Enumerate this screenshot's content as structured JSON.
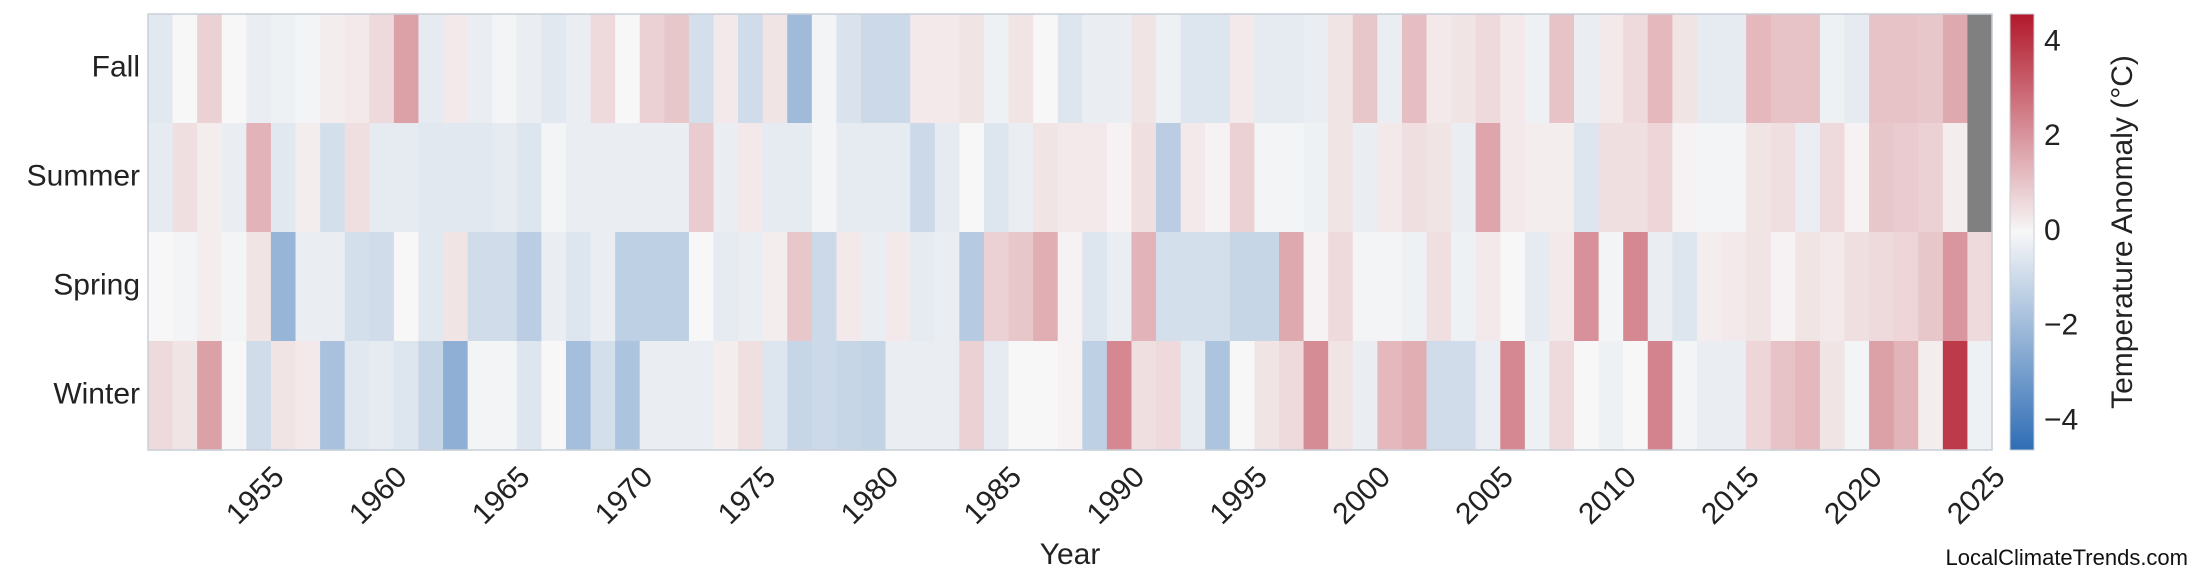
{
  "chart_data": {
    "type": "heatmap",
    "xlabel": "Year",
    "colorbar_label": "Temperature Anomaly (°C)",
    "colorbar_ticks": [
      "−4",
      "−2",
      "0",
      "2",
      "4"
    ],
    "colorbar_tick_values": [
      -4,
      -2,
      0,
      2,
      4
    ],
    "clim": [
      -4.6,
      4.6
    ],
    "colormap": [
      "#2f6db5",
      "#f7f7f7",
      "#b2182b"
    ],
    "missing_color": "#808080",
    "seasons": [
      "Fall",
      "Summer",
      "Spring",
      "Winter"
    ],
    "x_tick_labels": [
      "1955",
      "1960",
      "1965",
      "1970",
      "1975",
      "1980",
      "1985",
      "1990",
      "1995",
      "2000",
      "2005",
      "2010",
      "2015",
      "2020",
      "2025"
    ],
    "x_tick_values": [
      1955,
      1960,
      1965,
      1970,
      1975,
      1980,
      1985,
      1990,
      1995,
      2000,
      2005,
      2010,
      2015,
      2020,
      2025
    ],
    "xlim": [
      1950,
      2025
    ],
    "years": [
      1950,
      1951,
      1952,
      1953,
      1954,
      1955,
      1956,
      1957,
      1958,
      1959,
      1960,
      1961,
      1962,
      1963,
      1964,
      1965,
      1966,
      1967,
      1968,
      1969,
      1970,
      1971,
      1972,
      1973,
      1974,
      1975,
      1976,
      1977,
      1978,
      1979,
      1980,
      1981,
      1982,
      1983,
      1984,
      1985,
      1986,
      1987,
      1988,
      1989,
      1990,
      1991,
      1992,
      1993,
      1994,
      1995,
      1996,
      1997,
      1998,
      1999,
      2000,
      2001,
      2002,
      2003,
      2004,
      2005,
      2006,
      2007,
      2008,
      2009,
      2010,
      2011,
      2012,
      2013,
      2014,
      2015,
      2016,
      2017,
      2018,
      2019,
      2020,
      2021,
      2022,
      2023,
      2024
    ],
    "values": {
      "Fall": [
        -0.5,
        0.0,
        0.8,
        0.0,
        -0.3,
        -0.2,
        -0.1,
        0.2,
        0.3,
        0.6,
        1.8,
        -0.4,
        0.3,
        -0.3,
        -0.1,
        -0.3,
        -0.5,
        -0.3,
        0.6,
        0.0,
        0.8,
        1.0,
        -0.8,
        0.3,
        -0.9,
        0.4,
        -2.0,
        -0.1,
        -0.7,
        -1.0,
        -1.0,
        0.3,
        0.3,
        0.4,
        -0.2,
        0.4,
        0.0,
        -0.6,
        -0.3,
        -0.3,
        0.4,
        -0.2,
        -0.6,
        -0.6,
        0.3,
        -0.4,
        -0.4,
        -0.3,
        0.4,
        1.0,
        -0.3,
        1.2,
        0.3,
        0.4,
        0.6,
        0.3,
        -0.2,
        1.1,
        -0.3,
        0.3,
        0.6,
        1.3,
        0.4,
        -0.4,
        -0.4,
        1.3,
        1.1,
        1.1,
        -0.2,
        -0.4,
        1.1,
        1.1,
        1.0,
        1.6,
        null
      ],
      "Summer": [
        -0.4,
        0.5,
        0.2,
        -0.3,
        1.4,
        -0.5,
        0.2,
        -0.8,
        0.5,
        -0.4,
        -0.4,
        -0.5,
        -0.5,
        -0.5,
        -0.4,
        -0.6,
        -0.1,
        -0.3,
        -0.3,
        -0.3,
        -0.3,
        -0.3,
        0.9,
        -0.3,
        0.3,
        -0.4,
        -0.4,
        -0.1,
        -0.4,
        -0.4,
        -0.4,
        -1.0,
        -0.4,
        0.0,
        -0.6,
        -0.3,
        0.4,
        0.3,
        0.3,
        0.1,
        0.5,
        -1.4,
        0.3,
        0.1,
        0.8,
        -0.1,
        -0.1,
        -0.2,
        0.4,
        -0.3,
        0.3,
        0.5,
        0.4,
        -0.3,
        1.7,
        0.3,
        0.2,
        0.2,
        -0.6,
        0.5,
        0.5,
        0.7,
        0.1,
        -0.1,
        -0.1,
        0.4,
        0.5,
        -0.3,
        0.6,
        0.1,
        1.0,
        0.9,
        0.8,
        0.2,
        null
      ],
      "Spring": [
        0.0,
        -0.1,
        0.2,
        -0.1,
        0.4,
        -2.2,
        -0.3,
        -0.3,
        -0.8,
        -0.9,
        0.0,
        -0.5,
        0.4,
        -0.9,
        -0.9,
        -1.4,
        -0.3,
        -0.6,
        -0.3,
        -1.3,
        -1.3,
        -1.3,
        0.0,
        -0.4,
        -0.3,
        0.2,
        1.0,
        -1.0,
        0.3,
        -0.3,
        0.3,
        -0.4,
        -0.3,
        -1.5,
        0.8,
        1.0,
        1.5,
        0.1,
        -0.6,
        -0.3,
        1.4,
        -0.8,
        -0.8,
        -0.8,
        -1.1,
        -1.1,
        1.6,
        0.1,
        0.6,
        -0.1,
        -0.1,
        -0.2,
        0.5,
        -0.2,
        0.3,
        0.0,
        -0.4,
        0.3,
        2.1,
        -0.1,
        2.3,
        -0.3,
        -0.6,
        0.2,
        0.3,
        0.4,
        0.1,
        0.4,
        0.3,
        0.5,
        0.6,
        0.7,
        1.0,
        2.0,
        0.6
      ],
      "Winter": [
        0.6,
        0.4,
        1.8,
        0.0,
        -0.9,
        0.4,
        0.3,
        -1.8,
        -0.5,
        -0.4,
        -0.6,
        -1.1,
        -2.4,
        -0.1,
        -0.1,
        -0.6,
        0.0,
        -1.9,
        -0.8,
        -1.7,
        -0.3,
        -0.3,
        -0.3,
        0.2,
        0.5,
        -0.6,
        -1.1,
        -1.0,
        -1.1,
        -1.2,
        -0.3,
        -0.3,
        -0.3,
        0.8,
        -0.4,
        0.0,
        0.0,
        0.1,
        -1.3,
        2.3,
        0.5,
        0.6,
        -0.4,
        -1.7,
        0.0,
        0.4,
        0.6,
        2.2,
        0.4,
        -0.3,
        1.3,
        1.5,
        -0.9,
        -0.9,
        -0.3,
        2.3,
        -0.2,
        0.6,
        0.0,
        -0.2,
        0.0,
        2.4,
        -0.1,
        -0.3,
        -0.3,
        0.7,
        1.1,
        1.3,
        0.4,
        -0.1,
        1.8,
        1.4,
        0.2,
        3.9,
        -0.2
      ]
    }
  },
  "credit": "LocalClimateTrends.com"
}
